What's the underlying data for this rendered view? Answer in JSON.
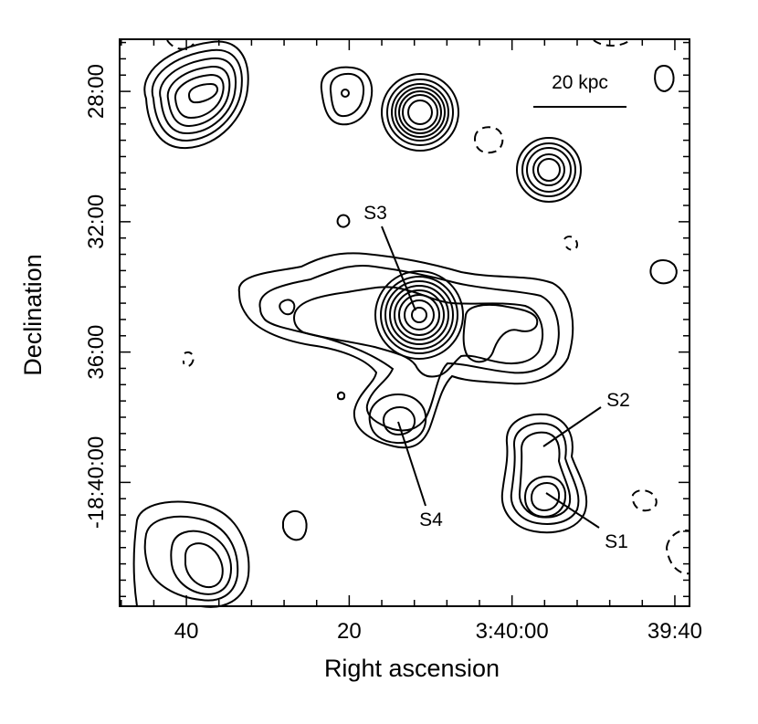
{
  "chart_data": {
    "type": "contour",
    "xlabel": "Right ascension",
    "ylabel": "Declination",
    "x_ticks": [
      {
        "value_s": 40,
        "label": "40"
      },
      {
        "value_s": 20,
        "label": "20"
      },
      {
        "value_s": 0,
        "label": "3:40:00"
      },
      {
        "value_s": -20,
        "label": "39:40"
      }
    ],
    "y_ticks": [
      {
        "value_min": 28,
        "label": "28:00"
      },
      {
        "value_min": 32,
        "label": "32:00"
      },
      {
        "value_min": 36,
        "label": "36:00"
      },
      {
        "value_min": 40,
        "label": "-18:40:00"
      }
    ],
    "xlim_s": [
      48.2,
      -21.8
    ],
    "ylim_min": [
      26.4,
      43.8
    ],
    "scale_bar": {
      "label": "20 kpc"
    },
    "sources": [
      {
        "name": "S1",
        "ra_s": -4.0,
        "dec_min": 40.0
      },
      {
        "name": "S2",
        "ra_s": -4.0,
        "dec_min": 38.75
      },
      {
        "name": "S3",
        "ra_s": 12.5,
        "dec_min": 34.0
      },
      {
        "name": "S4",
        "ra_s": 14.8,
        "dec_min": 37.75
      }
    ],
    "line_style": {
      "positive": "solid",
      "negative": "dashed"
    }
  }
}
